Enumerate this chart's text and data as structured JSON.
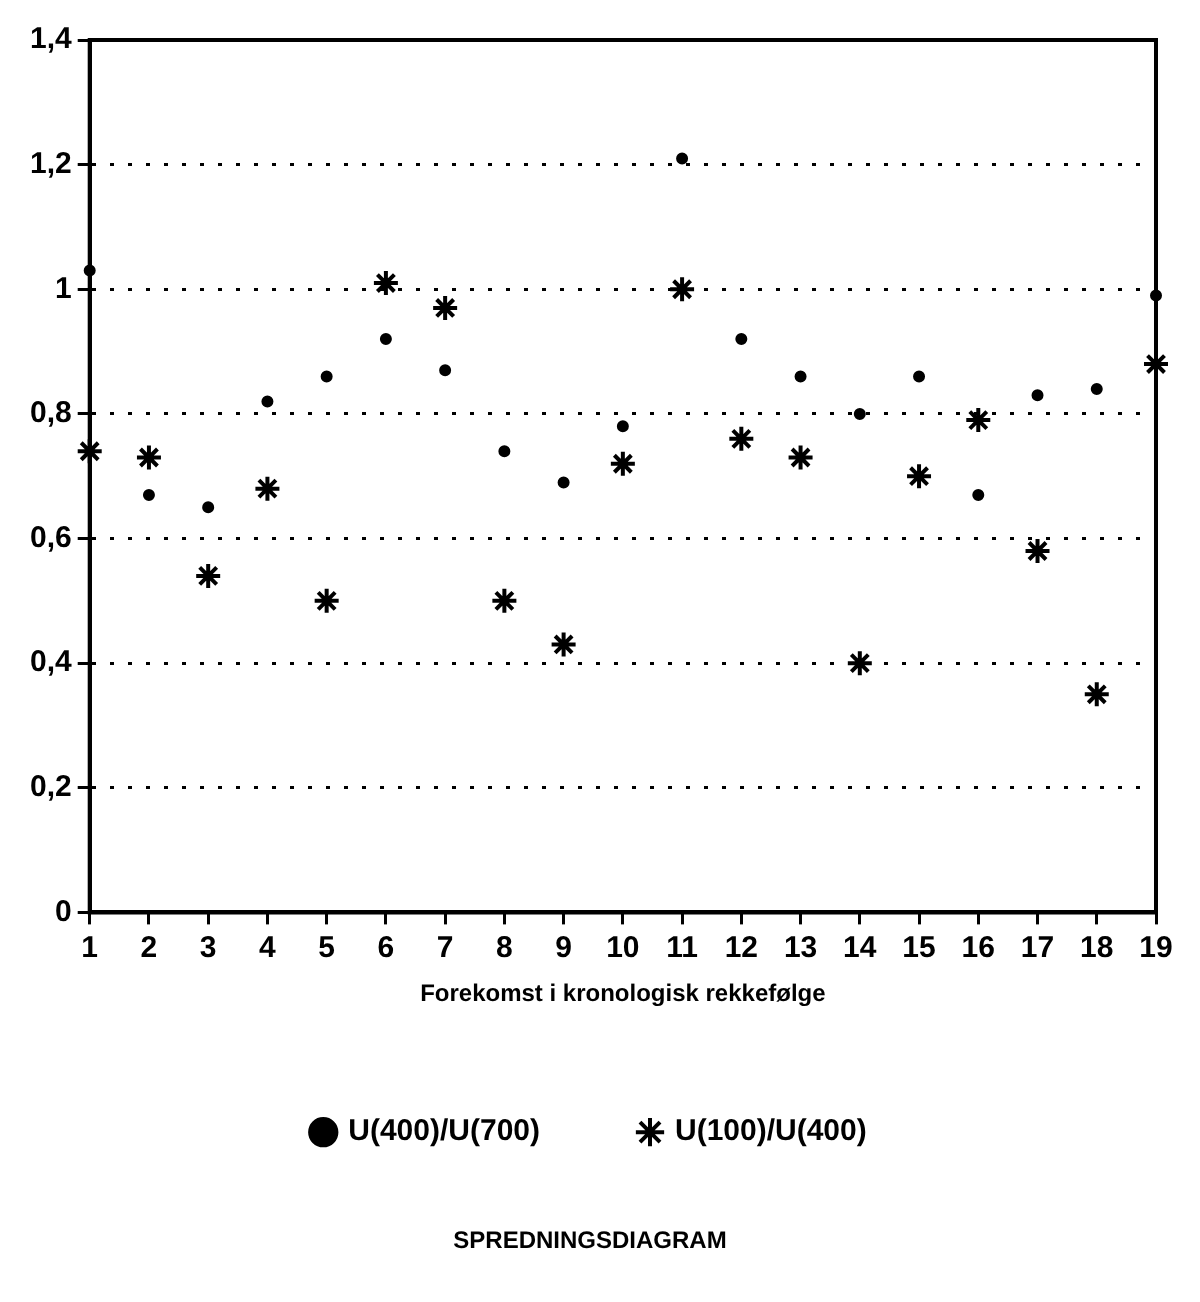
{
  "chart_data": {
    "type": "scatter",
    "title": "SPREDNINGSDIAGRAM",
    "xlabel": "Forekomst i kronologisk rekkefølge",
    "x": [
      1,
      2,
      3,
      4,
      5,
      6,
      7,
      8,
      9,
      10,
      11,
      12,
      13,
      14,
      15,
      16,
      17,
      18,
      19
    ],
    "xlim": [
      1,
      19
    ],
    "xticks": [
      1,
      2,
      3,
      4,
      5,
      6,
      7,
      8,
      9,
      10,
      11,
      12,
      13,
      14,
      15,
      16,
      17,
      18,
      19
    ],
    "ylim": [
      0,
      1.4
    ],
    "yticks": [
      {
        "value": 0,
        "label": "0"
      },
      {
        "value": 0.2,
        "label": "0,2"
      },
      {
        "value": 0.4,
        "label": "0,4"
      },
      {
        "value": 0.6,
        "label": "0,6"
      },
      {
        "value": 0.8,
        "label": "0,8"
      },
      {
        "value": 1,
        "label": "1"
      },
      {
        "value": 1.2,
        "label": "1,2"
      },
      {
        "value": 1.4,
        "label": "1,4"
      }
    ],
    "grid": "y",
    "line_style": "dotted",
    "legend": "bottom",
    "series": [
      {
        "name": "U(400)/U(700)",
        "color": "#000000",
        "marker": "circle",
        "values": [
          1.03,
          0.67,
          0.65,
          0.82,
          0.86,
          0.92,
          0.87,
          0.74,
          0.69,
          0.78,
          1.21,
          0.92,
          0.86,
          0.8,
          0.86,
          0.67,
          0.83,
          0.84,
          0.99
        ]
      },
      {
        "name": "U(100)/U(400)",
        "color": "#000000",
        "marker": "cross",
        "values": [
          0.74,
          0.73,
          0.54,
          0.68,
          0.5,
          1.01,
          0.97,
          0.5,
          0.43,
          0.72,
          1.0,
          0.76,
          0.73,
          0.4,
          0.7,
          0.79,
          0.58,
          0.35,
          0.88
        ]
      }
    ]
  }
}
